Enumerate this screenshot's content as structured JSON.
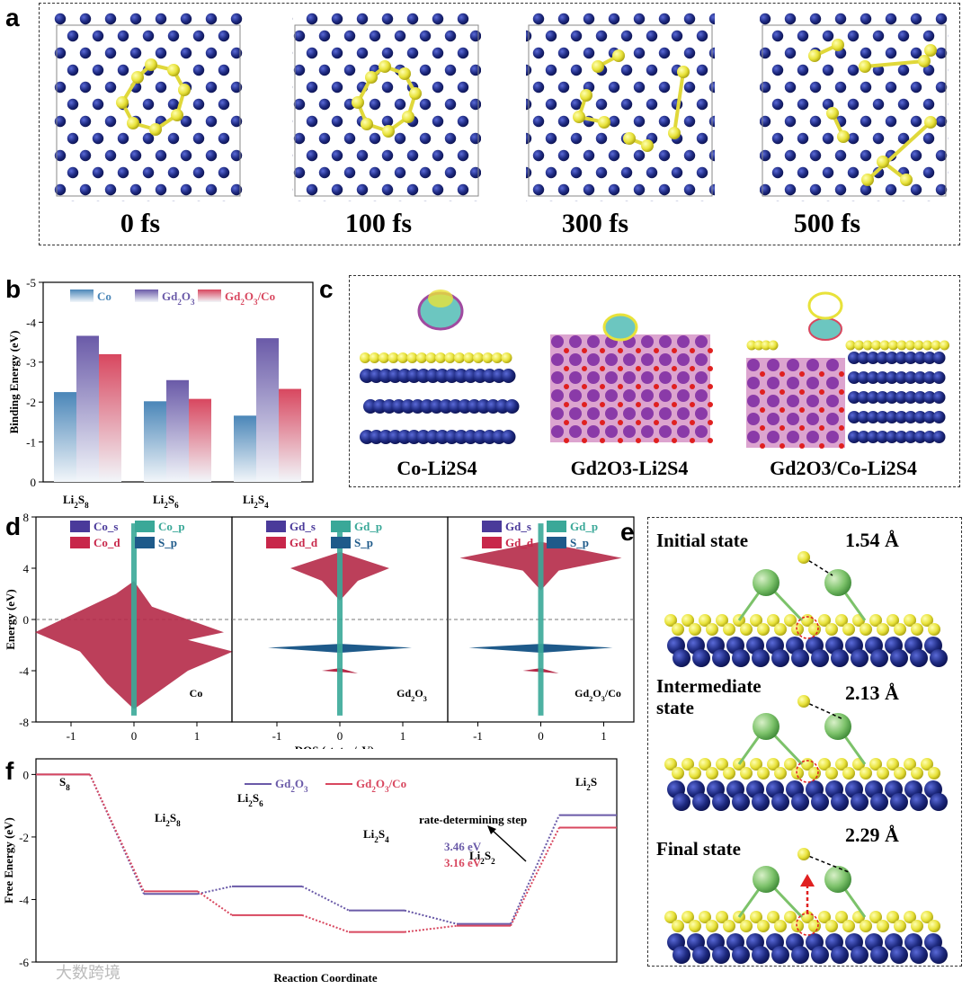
{
  "panel_letters": {
    "a": "a",
    "b": "b",
    "c": "c",
    "d": "d",
    "e": "e",
    "f": "f"
  },
  "panel_a": {
    "times": [
      "0 fs",
      "100 fs",
      "300 fs",
      "500 fs"
    ]
  },
  "panel_c": {
    "labels": [
      "Co-Li2S4",
      "Gd2O3-Li2S4",
      "Gd2O3/Co-Li2S4"
    ]
  },
  "panel_e": {
    "states": [
      {
        "name": "Initial state",
        "distance": "1.54 Å"
      },
      {
        "name": "Intermediate state",
        "distance": "2.13 Å"
      },
      {
        "name": "Final state",
        "distance": "2.29 Å"
      }
    ]
  },
  "colors": {
    "co": "#4a86b8",
    "gd2o3": "#6a5aa8",
    "gd2o3co": "#d8475f",
    "blue_atom": "#1e2a80",
    "yellow_atom": "#e8e23a",
    "green_atom": "#7cc26a"
  },
  "watermark": "大数跨境",
  "chart_data": [
    {
      "id": "b",
      "type": "bar",
      "title": "",
      "ylabel": "Binding Energy (eV)",
      "xlabel": "",
      "categories": [
        "Li2S8",
        "Li2S6",
        "Li2S4"
      ],
      "category_main": [
        "Li",
        "S",
        "Li",
        "S",
        "Li",
        "S"
      ],
      "category_labels": [
        [
          "Li",
          "2",
          "S",
          "8"
        ],
        [
          "Li",
          "2",
          "S",
          "6"
        ],
        [
          "Li",
          "2",
          "S",
          "4"
        ]
      ],
      "series": [
        {
          "name": "Co",
          "legend": [
            "Co"
          ],
          "values": [
            -2.25,
            -2.02,
            -1.66
          ]
        },
        {
          "name": "Gd2O3",
          "legend": [
            "Gd",
            "2",
            "O",
            "3"
          ],
          "values": [
            -3.66,
            -2.55,
            -3.6
          ]
        },
        {
          "name": "Gd2O3/Co",
          "legend": [
            "Gd",
            "2",
            "O",
            "3",
            "/Co"
          ],
          "values": [
            -3.2,
            -2.08,
            -2.33
          ]
        }
      ],
      "ylim": [
        0,
        -5
      ],
      "yticks": [
        "0",
        "-1",
        "-2",
        "-3",
        "-4",
        "-5"
      ]
    },
    {
      "id": "d",
      "type": "area",
      "ylabel": "Energy (eV)",
      "xlabel": "DOS (states/eV)",
      "ylim": [
        -8,
        8
      ],
      "yticks": [
        "-8",
        "-4",
        "0",
        "4",
        "8"
      ],
      "xticks": [
        "-1",
        "0",
        "1"
      ],
      "subplots": [
        {
          "name": "Co",
          "legend": [
            "Co_s",
            "Co_p",
            "Co_d",
            "S_p"
          ],
          "main_peak_energy": -1.2
        },
        {
          "name": "Gd2O3",
          "legend": [
            "Gd_s",
            "Gd_p",
            "Gd_d",
            "S_p"
          ],
          "main_peak_energy": 4.0
        },
        {
          "name": "Gd2O3/Co",
          "legend": [
            "Gd_s",
            "Gd_p",
            "Gd_d",
            "S_p"
          ],
          "main_peak_energy": 4.8
        }
      ]
    },
    {
      "id": "f",
      "type": "line",
      "ylabel": "Free Energy (eV)",
      "xlabel": "Reaction Coordinate",
      "ylim": [
        -6,
        0.5
      ],
      "yticks": [
        "0",
        "-2",
        "-4",
        "-6"
      ],
      "species": [
        "S8",
        "Li2S8",
        "Li2S6",
        "Li2S4",
        "Li2S2",
        "Li2S"
      ],
      "series": [
        {
          "name": "Gd2O3",
          "values": [
            0,
            -3.82,
            -3.58,
            -4.35,
            -4.78,
            -1.3
          ]
        },
        {
          "name": "Gd2O3/Co",
          "values": [
            0,
            -3.74,
            -4.5,
            -5.04,
            -4.84,
            -1.7
          ]
        }
      ],
      "annotation": "rate-determining step",
      "energies": [
        "3.46 eV",
        "3.16 eV"
      ]
    }
  ]
}
